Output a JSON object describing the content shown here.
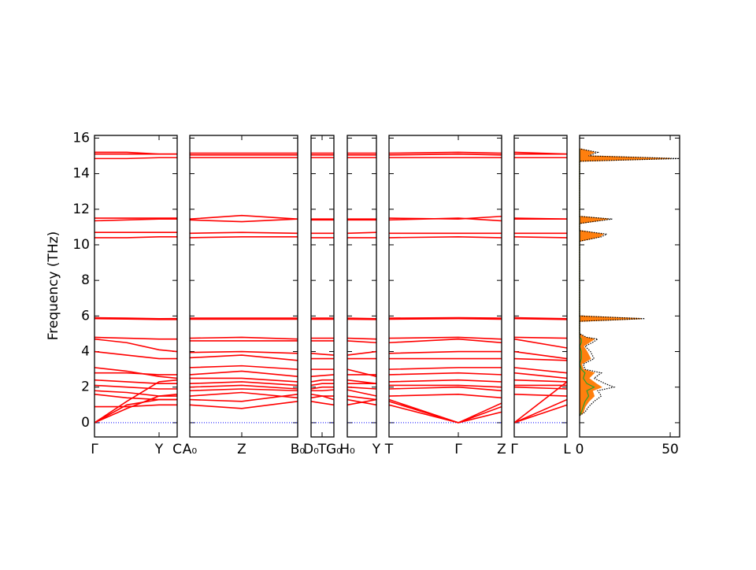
{
  "chart_data": {
    "type": "band_structure",
    "ylabel": "Frequency (THz)",
    "ylim": [
      -0.8,
      16.15
    ],
    "yticks": [
      0,
      2,
      4,
      6,
      8,
      10,
      12,
      14,
      16
    ],
    "panels": [
      {
        "type": "line",
        "color": "#ff0000",
        "xlim": [
          0,
          1.05
        ],
        "xticks": [
          {
            "value": 0,
            "label": "Γ"
          },
          {
            "value": 0.82,
            "label": "Y"
          },
          {
            "value": 1.05,
            "label": "C"
          }
        ],
        "x": [
          0,
          0.41,
          0.82,
          1.05
        ],
        "bands": [
          [
            15.2,
            15.2,
            15.1,
            15.1
          ],
          [
            15.1,
            15.1,
            15.1,
            15.1
          ],
          [
            14.85,
            14.85,
            14.9,
            14.9
          ],
          [
            11.5,
            11.5,
            11.5,
            11.5
          ],
          [
            11.35,
            11.4,
            11.45,
            11.45
          ],
          [
            10.7,
            10.7,
            10.7,
            10.7
          ],
          [
            10.4,
            10.4,
            10.45,
            10.45
          ],
          [
            5.9,
            5.88,
            5.85,
            5.85
          ],
          [
            5.85,
            5.83,
            5.8,
            5.8
          ],
          [
            4.8,
            4.75,
            4.7,
            4.7
          ],
          [
            4.7,
            4.5,
            4.1,
            4.0
          ],
          [
            4.0,
            3.8,
            3.6,
            3.6
          ],
          [
            3.1,
            2.9,
            2.6,
            2.5
          ],
          [
            2.8,
            2.8,
            2.7,
            2.7
          ],
          [
            2.4,
            2.3,
            2.2,
            2.2
          ],
          [
            2.1,
            2.0,
            1.9,
            1.9
          ],
          [
            1.8,
            1.7,
            1.5,
            1.5
          ],
          [
            1.6,
            1.4,
            1.3,
            1.3
          ],
          [
            0.9,
            0.9,
            1.0,
            1.0
          ],
          [
            0,
            1.0,
            1.3,
            1.3
          ],
          [
            0,
            0.8,
            1.5,
            1.6
          ],
          [
            0,
            1.2,
            2.3,
            2.4
          ]
        ]
      },
      {
        "type": "line",
        "color": "#ff0000",
        "xlim": [
          0,
          1.37
        ],
        "xticks": [
          {
            "value": 0,
            "label": "A₀"
          },
          {
            "value": 0.66,
            "label": "Z"
          },
          {
            "value": 1.37,
            "label": "B₀"
          }
        ],
        "x": [
          0,
          0.66,
          1.37
        ],
        "bands": [
          [
            15.15,
            15.15,
            15.15
          ],
          [
            15.05,
            15.05,
            15.05
          ],
          [
            14.9,
            14.9,
            14.9
          ],
          [
            11.45,
            11.65,
            11.45
          ],
          [
            11.4,
            11.3,
            11.45
          ],
          [
            10.65,
            10.7,
            10.65
          ],
          [
            10.4,
            10.45,
            10.45
          ],
          [
            5.88,
            5.88,
            5.88
          ],
          [
            5.82,
            5.82,
            5.82
          ],
          [
            4.75,
            4.8,
            4.7
          ],
          [
            4.6,
            4.6,
            4.6
          ],
          [
            3.95,
            4.0,
            3.9
          ],
          [
            3.65,
            3.8,
            3.5
          ],
          [
            3.1,
            3.2,
            3.0
          ],
          [
            2.7,
            2.9,
            2.6
          ],
          [
            2.5,
            2.5,
            2.3
          ],
          [
            2.2,
            2.3,
            2.1
          ],
          [
            2.0,
            2.1,
            1.9
          ],
          [
            1.8,
            1.9,
            1.8
          ],
          [
            1.5,
            1.7,
            1.4
          ],
          [
            1.3,
            1.2,
            1.6
          ],
          [
            1.0,
            0.8,
            1.2
          ]
        ]
      },
      {
        "type": "line",
        "color": "#ff0000",
        "xlim": [
          0,
          0.29
        ],
        "xticks": [
          {
            "value": 0,
            "label": "D₀"
          },
          {
            "value": 0.14,
            "label": "T"
          },
          {
            "value": 0.29,
            "label": "G₀"
          }
        ],
        "x": [
          0,
          0.14,
          0.29
        ],
        "bands": [
          [
            15.15,
            15.15,
            15.15
          ],
          [
            15.05,
            15.05,
            15.05
          ],
          [
            14.9,
            14.9,
            14.9
          ],
          [
            11.45,
            11.45,
            11.45
          ],
          [
            11.4,
            11.4,
            11.4
          ],
          [
            10.65,
            10.65,
            10.65
          ],
          [
            10.4,
            10.4,
            10.4
          ],
          [
            5.88,
            5.88,
            5.88
          ],
          [
            5.82,
            5.82,
            5.82
          ],
          [
            4.75,
            4.75,
            4.75
          ],
          [
            4.6,
            4.6,
            4.6
          ],
          [
            3.9,
            3.85,
            3.8
          ],
          [
            3.6,
            3.6,
            3.6
          ],
          [
            3.0,
            3.0,
            3.0
          ],
          [
            2.6,
            2.65,
            2.7
          ],
          [
            2.3,
            2.4,
            2.4
          ],
          [
            2.1,
            2.2,
            2.2
          ],
          [
            1.9,
            2.0,
            2.0
          ],
          [
            1.8,
            1.8,
            1.85
          ],
          [
            1.4,
            1.5,
            1.5
          ],
          [
            1.6,
            1.5,
            1.3
          ],
          [
            1.2,
            1.1,
            1.0
          ]
        ]
      },
      {
        "type": "line",
        "color": "#ff0000",
        "xlim": [
          0,
          0.37
        ],
        "xticks": [
          {
            "value": 0,
            "label": "H₀"
          },
          {
            "value": 0.37,
            "label": "Y"
          }
        ],
        "x": [
          0,
          0.37
        ],
        "bands": [
          [
            15.15,
            15.15
          ],
          [
            15.05,
            15.05
          ],
          [
            14.9,
            14.9
          ],
          [
            11.45,
            11.45
          ],
          [
            11.4,
            11.4
          ],
          [
            10.65,
            10.7
          ],
          [
            10.4,
            10.4
          ],
          [
            5.88,
            5.85
          ],
          [
            5.82,
            5.8
          ],
          [
            4.75,
            4.7
          ],
          [
            4.6,
            4.5
          ],
          [
            3.8,
            4.0
          ],
          [
            3.6,
            3.6
          ],
          [
            3.0,
            2.6
          ],
          [
            2.7,
            2.7
          ],
          [
            2.4,
            2.2
          ],
          [
            2.2,
            2.2
          ],
          [
            2.0,
            1.9
          ],
          [
            1.85,
            1.5
          ],
          [
            1.5,
            1.3
          ],
          [
            1.3,
            1.0
          ],
          [
            1.0,
            1.3
          ]
        ]
      },
      {
        "type": "line",
        "color": "#ff0000",
        "xlim": [
          0,
          1.43
        ],
        "xticks": [
          {
            "value": 0,
            "label": "T"
          },
          {
            "value": 0.88,
            "label": "Γ"
          },
          {
            "value": 1.43,
            "label": "Z"
          }
        ],
        "x": [
          0,
          0.88,
          1.43
        ],
        "bands": [
          [
            15.15,
            15.2,
            15.15
          ],
          [
            15.05,
            15.1,
            15.05
          ],
          [
            14.9,
            14.9,
            14.9
          ],
          [
            11.5,
            11.45,
            11.6
          ],
          [
            11.4,
            11.5,
            11.35
          ],
          [
            10.65,
            10.65,
            10.65
          ],
          [
            10.4,
            10.45,
            10.4
          ],
          [
            5.88,
            5.9,
            5.88
          ],
          [
            5.82,
            5.85,
            5.82
          ],
          [
            4.75,
            4.8,
            4.7
          ],
          [
            4.5,
            4.7,
            4.5
          ],
          [
            3.9,
            4.0,
            4.0
          ],
          [
            3.6,
            3.6,
            3.6
          ],
          [
            3.0,
            3.1,
            3.1
          ],
          [
            2.7,
            2.8,
            2.7
          ],
          [
            2.3,
            2.4,
            2.3
          ],
          [
            2.1,
            2.1,
            2.0
          ],
          [
            1.9,
            2.0,
            1.8
          ],
          [
            1.5,
            1.6,
            1.4
          ],
          [
            1.3,
            0,
            1.1
          ],
          [
            1.0,
            0,
            0.9
          ],
          [
            1.2,
            0,
            0.6
          ]
        ]
      },
      {
        "type": "line",
        "color": "#ff0000",
        "xlim": [
          0,
          0.67
        ],
        "xticks": [
          {
            "value": 0,
            "label": "Γ"
          },
          {
            "value": 0.67,
            "label": "L"
          }
        ],
        "x": [
          0,
          0.67
        ],
        "bands": [
          [
            15.2,
            15.1
          ],
          [
            15.1,
            15.1
          ],
          [
            14.9,
            14.9
          ],
          [
            11.45,
            11.45
          ],
          [
            11.5,
            11.45
          ],
          [
            10.65,
            10.65
          ],
          [
            10.45,
            10.4
          ],
          [
            5.9,
            5.85
          ],
          [
            5.85,
            5.8
          ],
          [
            4.8,
            4.75
          ],
          [
            4.7,
            4.2
          ],
          [
            4.0,
            3.6
          ],
          [
            3.6,
            3.5
          ],
          [
            3.1,
            2.8
          ],
          [
            2.8,
            2.5
          ],
          [
            2.4,
            2.3
          ],
          [
            2.1,
            2.1
          ],
          [
            2.0,
            1.9
          ],
          [
            1.6,
            1.5
          ],
          [
            0,
            1.3
          ],
          [
            0,
            1.0
          ],
          [
            0,
            2.3
          ]
        ]
      }
    ],
    "dos": {
      "type": "dos",
      "xlim": [
        0,
        55.2
      ],
      "xticks": [
        0,
        50
      ],
      "y": [
        0.4,
        0.6,
        0.9,
        1.2,
        1.5,
        1.8,
        2.0,
        2.2,
        2.5,
        2.8,
        3.0,
        3.3,
        3.6,
        4.0,
        4.3,
        4.5,
        4.7,
        4.8,
        5.0,
        5.7,
        5.85,
        6.0,
        10.2,
        10.45,
        10.6,
        10.8,
        11.2,
        11.45,
        11.6,
        14.7,
        14.85,
        15.0,
        15.2,
        15.4
      ],
      "series": [
        {
          "color": "#ff7f0e",
          "fill": true,
          "values": [
            0,
            2,
            3,
            5,
            8,
            7,
            12,
            9,
            5,
            8,
            2,
            1,
            6,
            4,
            2,
            5,
            8,
            3,
            0,
            0,
            34,
            0,
            0,
            11,
            13,
            0,
            0,
            16,
            0,
            0,
            50,
            4,
            8,
            0
          ]
        },
        {
          "color": "#2ca02c",
          "fill": false,
          "values": [
            0,
            1,
            2,
            3,
            5,
            4,
            8,
            4,
            2,
            3,
            1,
            0,
            1,
            1,
            0,
            1,
            1,
            0,
            0,
            0,
            0,
            0,
            0,
            0,
            0,
            0,
            0,
            0,
            0,
            0,
            0,
            0,
            0,
            0
          ]
        },
        {
          "color": "#000000",
          "fill": false,
          "dotted": true,
          "values": [
            0,
            3,
            5,
            8,
            12,
            10,
            19,
            14,
            8,
            12,
            3,
            2,
            8,
            6,
            3,
            7,
            10,
            4,
            0,
            0,
            36,
            0,
            0,
            12,
            15,
            0,
            0,
            18,
            0,
            0,
            55,
            5,
            10,
            0
          ]
        }
      ]
    }
  }
}
